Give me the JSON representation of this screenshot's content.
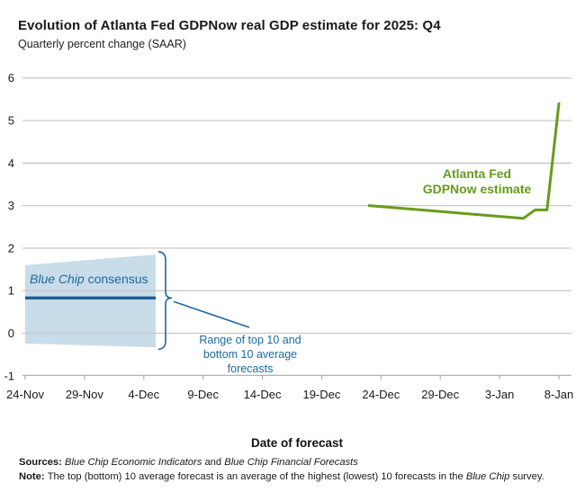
{
  "chart_data": {
    "type": "line",
    "title": "Evolution of Atlanta Fed GDPNow real GDP estimate for 2025: Q4",
    "subtitle": "Quarterly percent change (SAAR)",
    "xlabel": "Date of forecast",
    "ylabel": "Quarterly percent change (SAAR)",
    "ylim": [
      -1,
      6
    ],
    "y_ticks": [
      6,
      5,
      4,
      3,
      2,
      1,
      0,
      -1
    ],
    "x_tick_labels": [
      "24-Nov",
      "29-Nov",
      "4-Dec",
      "9-Dec",
      "14-Dec",
      "19-Dec",
      "24-Dec",
      "29-Dec",
      "3-Jan",
      "8-Jan"
    ],
    "x_tick_days": [
      0,
      5,
      10,
      15,
      20,
      25,
      30,
      35,
      40,
      45
    ],
    "grid": true,
    "legend_position": "none",
    "colors": {
      "gdpnow_green": "#679b1e",
      "consensus_blue": "#15598e",
      "band_fill": "#c8dce9",
      "annotation_blue": "#1e6a9e",
      "gridline": "#c9c9c9",
      "axis": "#a9a9a9",
      "text": "#1a1a1a"
    },
    "series": [
      {
        "name": "Atlanta Fed GDPNow estimate",
        "type": "line",
        "color": "#679b1e",
        "points": [
          {
            "date": "23-Dec",
            "day": 29,
            "value": 3.0
          },
          {
            "date": "5-Jan",
            "day": 42,
            "value": 2.7
          },
          {
            "date": "6-Jan",
            "day": 43,
            "value": 2.9
          },
          {
            "date": "7-Jan",
            "day": 44,
            "value": 2.9
          },
          {
            "date": "8-Jan",
            "day": 45,
            "value": 5.4
          }
        ]
      },
      {
        "name": "Blue Chip consensus",
        "type": "line",
        "color": "#15598e",
        "points": [
          {
            "date": "24-Nov",
            "day": 0,
            "value": 0.83
          },
          {
            "date": "5-Dec",
            "day": 11,
            "value": 0.83
          }
        ]
      },
      {
        "name": "Range of top 10 and bottom 10 average forecasts",
        "type": "band",
        "color": "#c8dce9",
        "points": [
          {
            "date": "24-Nov",
            "day": 0,
            "top": 1.6,
            "bottom": -0.24
          },
          {
            "date": "5-Dec",
            "day": 11,
            "top": 1.85,
            "bottom": -0.33
          }
        ]
      }
    ],
    "annotations": {
      "gdpnow_label": "Atlanta Fed\nGDPNow estimate",
      "consensus_label_italic": "Blue Chip",
      "consensus_label_rest": " consensus",
      "range_label": "Range of top 10 and\nbottom 10 average\nforecasts"
    }
  },
  "footer": {
    "sources": {
      "label": "Sources: ",
      "italic1": "Blue Chip Economic Indicators",
      "conj": " and ",
      "italic2": "Blue Chip Financial Forecasts"
    },
    "note": {
      "label": "Note: ",
      "pre": "The top (bottom) 10 average forecast is an average of the highest (lowest) 10 forecasts in the ",
      "italic": "Blue Chip",
      "post": " survey."
    }
  }
}
